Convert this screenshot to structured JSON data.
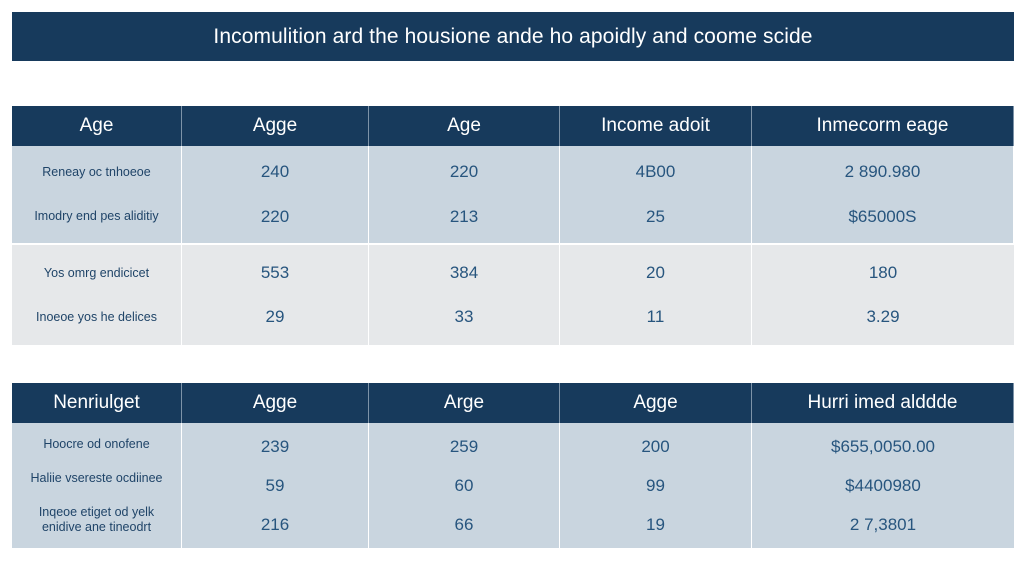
{
  "title": "Incomulition ard the housione ande ho apoidly and coome scide",
  "table1": {
    "headers": [
      "Age",
      "Agge",
      "Age",
      "Income adoit",
      "Inmecorm eage"
    ],
    "groups": [
      {
        "labels": [
          "Reneay oc tnhoeoe",
          "Imodry end pes aliditiy"
        ],
        "rows": [
          [
            "240",
            "220",
            "4B00",
            "2 890.980"
          ],
          [
            "220",
            "213",
            "25",
            "$65000S"
          ]
        ]
      },
      {
        "labels": [
          "Yos omrg endicicet",
          "Inoeoe yos he delices"
        ],
        "rows": [
          [
            "553",
            "384",
            "20",
            "180"
          ],
          [
            "29",
            "33",
            "11",
            "3.29"
          ]
        ]
      }
    ]
  },
  "table2": {
    "headers": [
      "Nenriulget",
      "Agge",
      "Arge",
      "Agge",
      "Hurri imed alddde"
    ],
    "group": {
      "labels": [
        "Hoocre od onofene",
        "Haliie vsereste ocdiinee",
        "Inqeoe etiget od yelk",
        "enidive ane tineodrt"
      ],
      "rows": [
        [
          "239",
          "259",
          "200",
          "$655,0050.00"
        ],
        [
          "59",
          "60",
          "99",
          "$4400980"
        ],
        [
          "216",
          "66",
          "19",
          "2 7,3801"
        ]
      ]
    }
  },
  "colors": {
    "header_bg": "#173a5c",
    "band_blue": "#c9d5df",
    "band_gray": "#e6e8ea",
    "text": "#27557e"
  }
}
